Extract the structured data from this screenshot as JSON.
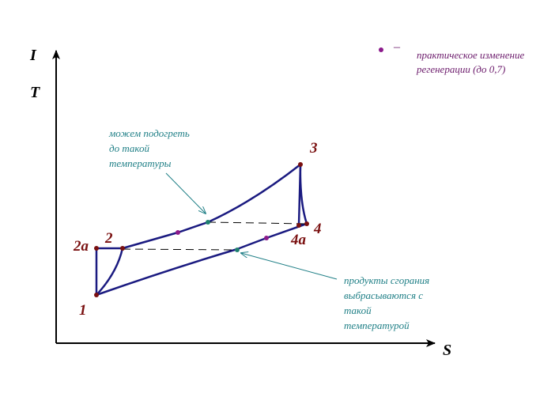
{
  "axes": {
    "y_label_top": "I",
    "y_label_bottom": "T",
    "x_label": "S"
  },
  "points": [
    {
      "id": "p1",
      "label": "1"
    },
    {
      "id": "p2a",
      "label": "2a"
    },
    {
      "id": "p2",
      "label": "2"
    },
    {
      "id": "p3",
      "label": "3"
    },
    {
      "id": "p4a",
      "label": "4a"
    },
    {
      "id": "p4",
      "label": "4"
    }
  ],
  "legend": {
    "dash": "–",
    "text_line1": "практическое изменение",
    "text_line2": "регенерации (до 0,7)"
  },
  "annotations": {
    "heat_up": [
      "можем подогреть",
      "до такой",
      "температуры"
    ],
    "exhaust": [
      "продукты сгорания",
      "выбрасываются с",
      "такой",
      "температурой"
    ]
  },
  "colors": {
    "curve": "#1a1a80",
    "state_point": "#7a1010",
    "practical_point": "#8b1a8b",
    "regen_point": "#1f8070",
    "teal_text": "#1f7f86",
    "purple_text": "#6b1a6b"
  }
}
